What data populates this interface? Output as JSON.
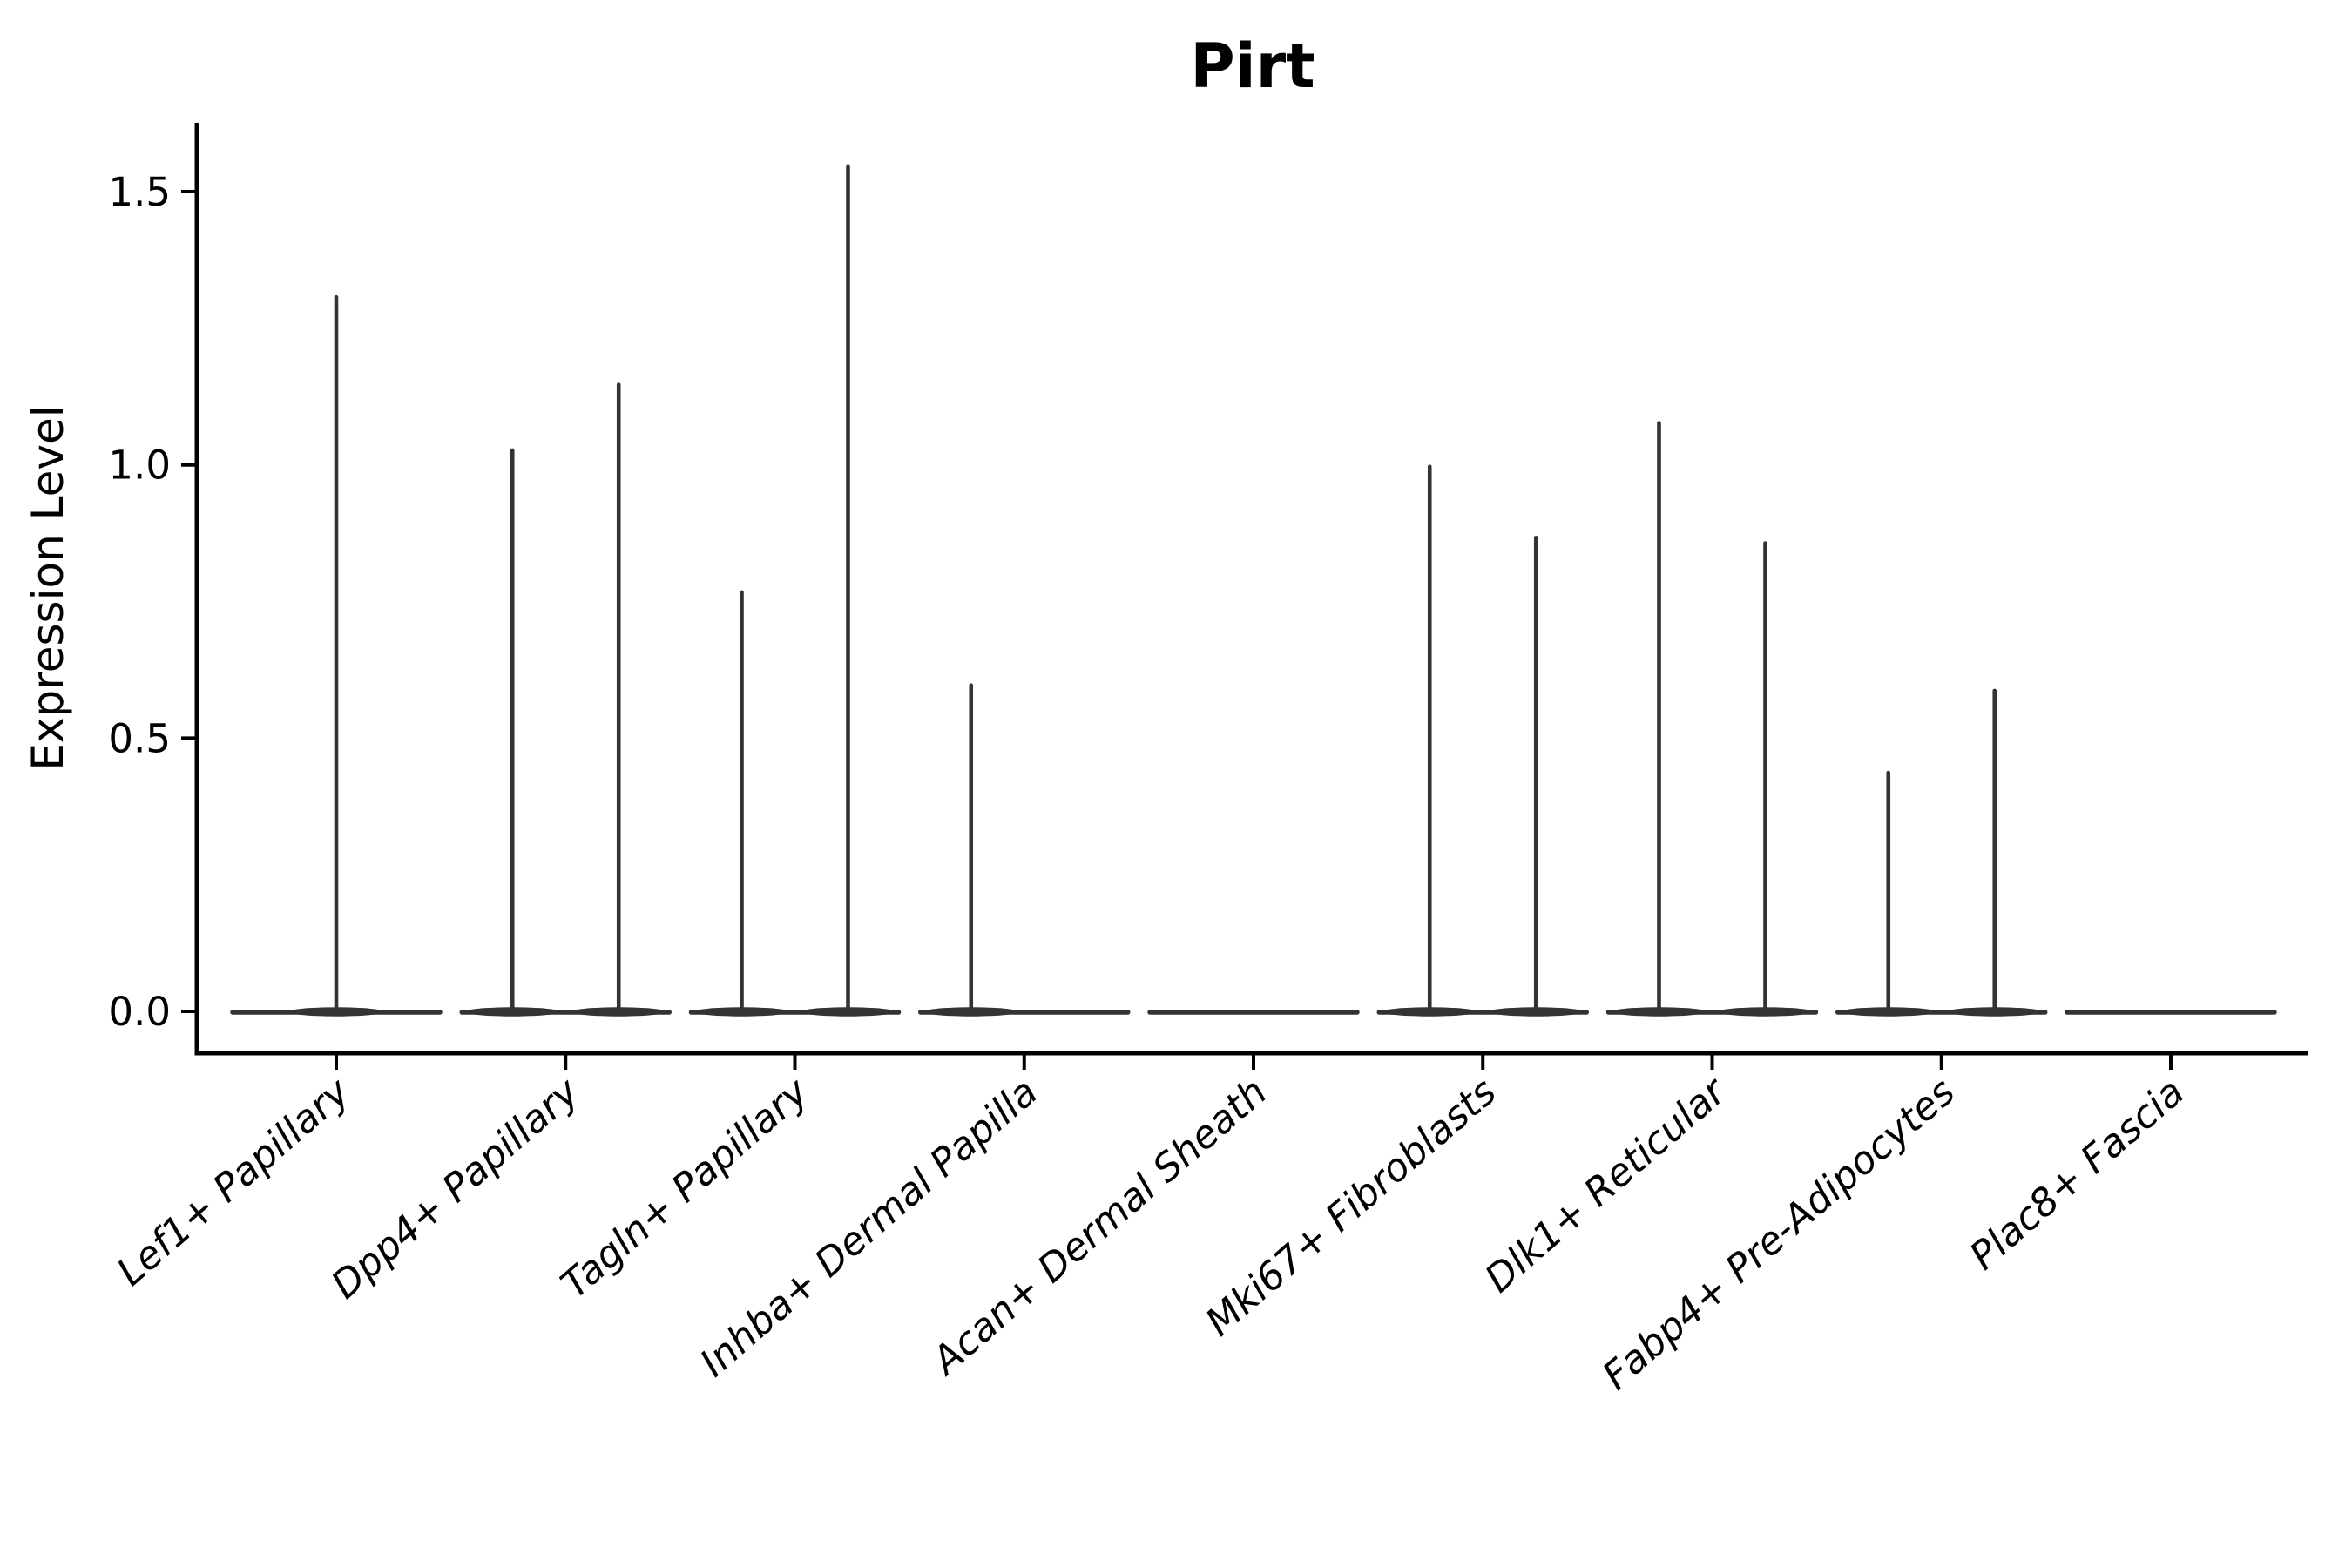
{
  "chart_data": {
    "type": "violin",
    "title": "Pirt",
    "xlabel": "",
    "ylabel": "Expression Level",
    "grid": false,
    "legend": null,
    "ylim": [
      -0.08,
      1.63
    ],
    "yticks": [
      {
        "label": "0.0",
        "value": 0.0
      },
      {
        "label": "0.5",
        "value": 0.5
      },
      {
        "label": "1.0",
        "value": 1.0
      },
      {
        "label": "1.5",
        "value": 1.5
      }
    ],
    "colors": {
      "violin": "#333333",
      "axis": "#000000",
      "text": "#000000"
    },
    "categories": [
      {
        "label": "Lef1+ Papillary",
        "violins": [
          {
            "side": "center",
            "max": 1.31
          }
        ]
      },
      {
        "label": "Dpp4+ Papillary",
        "violins": [
          {
            "side": "left",
            "max": 1.03
          },
          {
            "side": "right",
            "max": 1.15
          }
        ]
      },
      {
        "label": "Tagln+ Papillary",
        "violins": [
          {
            "side": "left",
            "max": 0.77
          },
          {
            "side": "right",
            "max": 1.55
          }
        ]
      },
      {
        "label": "Inhba+ Dermal Papilla",
        "violins": [
          {
            "side": "left",
            "max": 0.6
          },
          {
            "side": "right",
            "max": 0.0
          }
        ]
      },
      {
        "label": "Acan+ Dermal Sheath",
        "violins": [
          {
            "side": "center",
            "max": 0.0
          }
        ]
      },
      {
        "label": "Mki67+ Fibroblasts",
        "violins": [
          {
            "side": "left",
            "max": 1.0
          },
          {
            "side": "right",
            "max": 0.87
          }
        ]
      },
      {
        "label": "Dlk1+ Reticular",
        "violins": [
          {
            "side": "left",
            "max": 1.08
          },
          {
            "side": "right",
            "max": 0.86
          }
        ]
      },
      {
        "label": "Fabp4+ Pre-Adipocytes",
        "violins": [
          {
            "side": "left",
            "max": 0.44
          },
          {
            "side": "right",
            "max": 0.59
          }
        ]
      },
      {
        "label": "Plac8+ Fascia",
        "violins": [
          {
            "side": "center",
            "max": 0.0
          }
        ]
      }
    ]
  }
}
